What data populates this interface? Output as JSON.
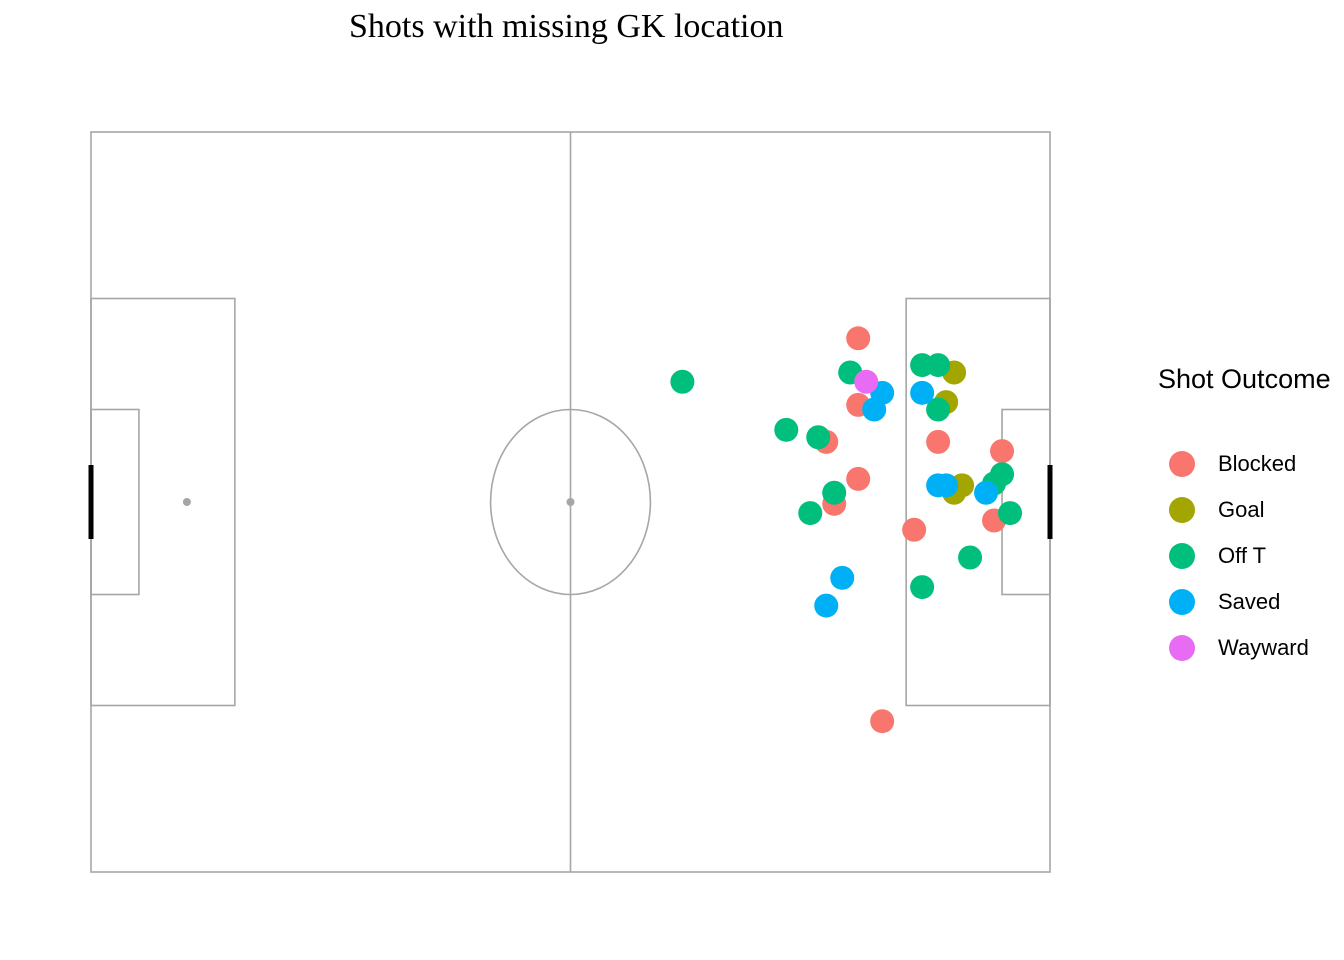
{
  "chart_data": {
    "type": "scatter",
    "title": "Shots with missing GK location",
    "xlim": [
      0,
      120
    ],
    "ylim": [
      0,
      80
    ],
    "pitch": {
      "length": 120,
      "width": 80,
      "background": "#ffffff",
      "line_color": "#a6a6a6",
      "goal_color": "#000000"
    },
    "legend": {
      "title": "Shot Outcome",
      "position": "right",
      "items": [
        {
          "label": "Blocked",
          "color": "#F8766D"
        },
        {
          "label": "Goal",
          "color": "#A3A500"
        },
        {
          "label": "Off T",
          "color": "#00BF7D"
        },
        {
          "label": "Saved",
          "color": "#00B0F6"
        },
        {
          "label": "Wayward",
          "color": "#E76BF3"
        }
      ]
    },
    "series": [
      {
        "name": "Blocked",
        "color": "#F8766D",
        "points": [
          {
            "x": 96,
            "y": 22.3
          },
          {
            "x": 96,
            "y": 29.5
          },
          {
            "x": 92,
            "y": 33.5
          },
          {
            "x": 106,
            "y": 33.5
          },
          {
            "x": 114,
            "y": 34.5
          },
          {
            "x": 96,
            "y": 37.5
          },
          {
            "x": 93,
            "y": 40.2
          },
          {
            "x": 113,
            "y": 42.0
          },
          {
            "x": 103,
            "y": 43.0
          },
          {
            "x": 99,
            "y": 63.7
          }
        ]
      },
      {
        "name": "Goal",
        "color": "#A3A500",
        "points": [
          {
            "x": 108,
            "y": 26.0
          },
          {
            "x": 107,
            "y": 29.2
          },
          {
            "x": 108,
            "y": 39.0
          },
          {
            "x": 109,
            "y": 38.2
          }
        ]
      },
      {
        "name": "Off T",
        "color": "#00BF7D",
        "points": [
          {
            "x": 104,
            "y": 25.2
          },
          {
            "x": 106,
            "y": 25.2
          },
          {
            "x": 95,
            "y": 26.0
          },
          {
            "x": 74,
            "y": 27.0
          },
          {
            "x": 106,
            "y": 30.0
          },
          {
            "x": 87,
            "y": 32.2
          },
          {
            "x": 91,
            "y": 33.0
          },
          {
            "x": 114,
            "y": 37.0
          },
          {
            "x": 113,
            "y": 38.0
          },
          {
            "x": 93,
            "y": 39.0
          },
          {
            "x": 90,
            "y": 41.2
          },
          {
            "x": 115,
            "y": 41.2
          },
          {
            "x": 110,
            "y": 46.0
          },
          {
            "x": 104,
            "y": 49.2
          }
        ]
      },
      {
        "name": "Saved",
        "color": "#00B0F6",
        "points": [
          {
            "x": 99,
            "y": 28.2
          },
          {
            "x": 104,
            "y": 28.2
          },
          {
            "x": 98,
            "y": 30.0
          },
          {
            "x": 106,
            "y": 38.2
          },
          {
            "x": 107,
            "y": 38.2
          },
          {
            "x": 112,
            "y": 39.0
          },
          {
            "x": 94,
            "y": 48.2
          },
          {
            "x": 92,
            "y": 51.2
          }
        ]
      },
      {
        "name": "Wayward",
        "color": "#E76BF3",
        "points": [
          {
            "x": 97,
            "y": 27.0
          }
        ]
      }
    ]
  }
}
